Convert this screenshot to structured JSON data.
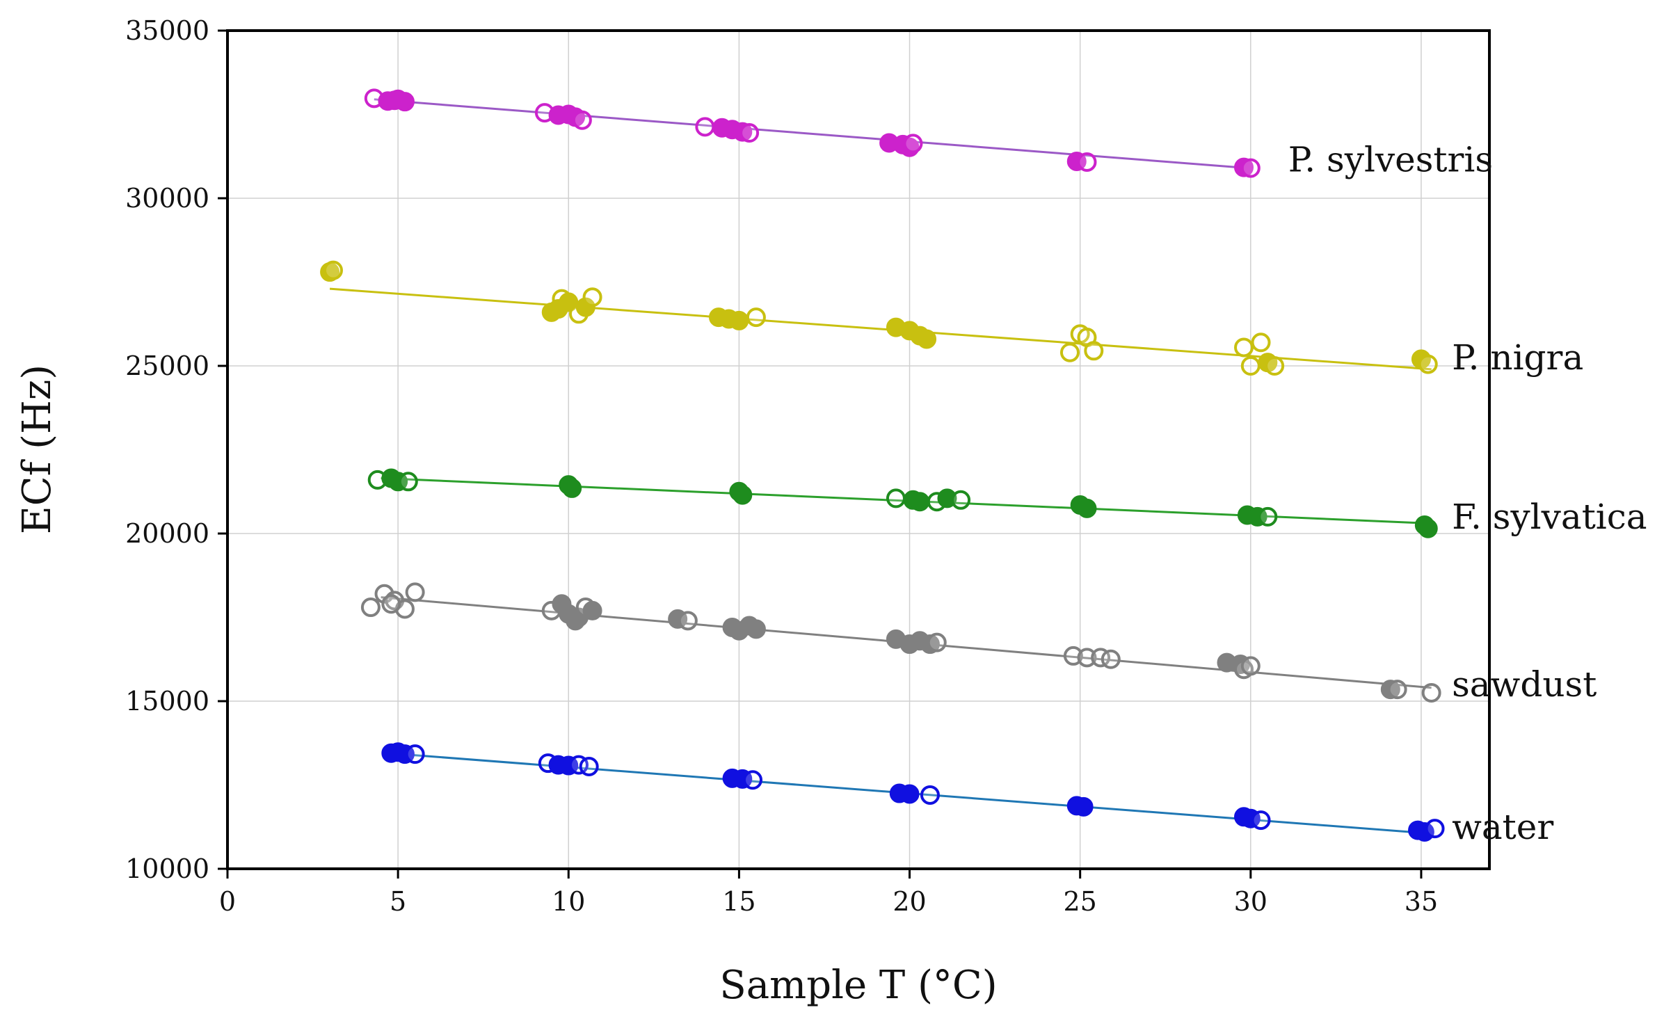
{
  "chart_data": {
    "type": "scatter",
    "xlabel": "Sample T (°C)",
    "ylabel": "ECf (Hz)",
    "xlim": [
      0,
      37
    ],
    "ylim": [
      10000,
      35000
    ],
    "xticks": [
      0,
      5,
      10,
      15,
      20,
      25,
      30,
      35
    ],
    "yticks": [
      10000,
      15000,
      20000,
      25000,
      30000,
      35000
    ],
    "grid": true,
    "series": [
      {
        "name": "P. sylvestris",
        "color": "#cc22cc",
        "fit_color": "#9b59c6",
        "fit": {
          "x": [
            4.3,
            29.9
          ],
          "y": [
            32950,
            30900
          ]
        },
        "label_at": {
          "x": 31.1,
          "y": 31150
        },
        "points": [
          [
            4.3,
            32980,
            "o"
          ],
          [
            4.7,
            32900,
            "f"
          ],
          [
            5.0,
            32950,
            "f"
          ],
          [
            5.2,
            32880,
            "f"
          ],
          [
            4.9,
            32920,
            "f"
          ],
          [
            9.3,
            32550,
            "o"
          ],
          [
            9.7,
            32480,
            "f"
          ],
          [
            10.0,
            32500,
            "f"
          ],
          [
            10.2,
            32420,
            "f"
          ],
          [
            10.4,
            32330,
            "o"
          ],
          [
            14.0,
            32130,
            "o"
          ],
          [
            14.5,
            32100,
            "f"
          ],
          [
            14.8,
            32050,
            "f"
          ],
          [
            15.1,
            31980,
            "f"
          ],
          [
            15.3,
            31950,
            "o"
          ],
          [
            19.4,
            31650,
            "f"
          ],
          [
            19.8,
            31600,
            "f"
          ],
          [
            20.0,
            31520,
            "f"
          ],
          [
            20.1,
            31630,
            "o"
          ],
          [
            24.9,
            31100,
            "f"
          ],
          [
            25.2,
            31080,
            "o"
          ],
          [
            29.8,
            30920,
            "f"
          ],
          [
            30.0,
            30900,
            "o"
          ]
        ]
      },
      {
        "name": "P. nigra",
        "color": "#c8c010",
        "fit_color": "#c8c010",
        "fit": {
          "x": [
            3.0,
            35.3
          ],
          "y": [
            27300,
            24900
          ]
        },
        "label_at": {
          "x": 35.9,
          "y": 25250
        },
        "points": [
          [
            3.0,
            27800,
            "f"
          ],
          [
            3.1,
            27850,
            "o"
          ],
          [
            9.5,
            26600,
            "f"
          ],
          [
            9.8,
            27000,
            "o"
          ],
          [
            10.0,
            26900,
            "f"
          ],
          [
            10.3,
            26550,
            "o"
          ],
          [
            10.5,
            26750,
            "f"
          ],
          [
            10.7,
            27050,
            "o"
          ],
          [
            9.7,
            26700,
            "f"
          ],
          [
            14.4,
            26450,
            "f"
          ],
          [
            14.7,
            26400,
            "f"
          ],
          [
            15.0,
            26350,
            "f"
          ],
          [
            15.5,
            26450,
            "o"
          ],
          [
            19.6,
            26150,
            "f"
          ],
          [
            20.0,
            26050,
            "f"
          ],
          [
            20.3,
            25900,
            "f"
          ],
          [
            20.5,
            25800,
            "f"
          ],
          [
            24.7,
            25400,
            "o"
          ],
          [
            25.0,
            25950,
            "o"
          ],
          [
            25.2,
            25850,
            "o"
          ],
          [
            25.4,
            25450,
            "o"
          ],
          [
            29.8,
            25550,
            "o"
          ],
          [
            30.0,
            25000,
            "o"
          ],
          [
            30.3,
            25700,
            "o"
          ],
          [
            30.5,
            25100,
            "f"
          ],
          [
            30.7,
            25000,
            "o"
          ],
          [
            35.0,
            25200,
            "f"
          ],
          [
            35.2,
            25050,
            "o"
          ]
        ]
      },
      {
        "name": "F. sylvatica",
        "color": "#1e8c1e",
        "fit_color": "#2ca02c",
        "fit": {
          "x": [
            4.5,
            35.3
          ],
          "y": [
            21650,
            20300
          ]
        },
        "label_at": {
          "x": 35.9,
          "y": 20500
        },
        "points": [
          [
            4.4,
            21600,
            "o"
          ],
          [
            4.8,
            21650,
            "f"
          ],
          [
            5.0,
            21550,
            "f"
          ],
          [
            5.3,
            21550,
            "o"
          ],
          [
            10.0,
            21450,
            "f"
          ],
          [
            10.1,
            21350,
            "f"
          ],
          [
            15.0,
            21250,
            "f"
          ],
          [
            15.1,
            21150,
            "f"
          ],
          [
            19.6,
            21050,
            "o"
          ],
          [
            20.1,
            21000,
            "f"
          ],
          [
            20.3,
            20950,
            "f"
          ],
          [
            20.8,
            20950,
            "o"
          ],
          [
            21.1,
            21050,
            "f"
          ],
          [
            21.5,
            21000,
            "o"
          ],
          [
            25.0,
            20850,
            "f"
          ],
          [
            25.2,
            20750,
            "f"
          ],
          [
            29.9,
            20550,
            "f"
          ],
          [
            30.2,
            20500,
            "f"
          ],
          [
            30.5,
            20500,
            "o"
          ],
          [
            35.1,
            20250,
            "f"
          ],
          [
            35.2,
            20150,
            "f"
          ]
        ]
      },
      {
        "name": "sawdust",
        "color": "#808080",
        "fit_color": "#808080",
        "fit": {
          "x": [
            4.5,
            35.3
          ],
          "y": [
            18100,
            15400
          ]
        },
        "label_at": {
          "x": 35.9,
          "y": 15500
        },
        "points": [
          [
            4.2,
            17800,
            "o"
          ],
          [
            4.6,
            18200,
            "o"
          ],
          [
            4.9,
            18000,
            "o"
          ],
          [
            5.2,
            17750,
            "o"
          ],
          [
            5.5,
            18250,
            "o"
          ],
          [
            4.8,
            17900,
            "o"
          ],
          [
            9.5,
            17700,
            "o"
          ],
          [
            9.8,
            17900,
            "f"
          ],
          [
            10.0,
            17600,
            "f"
          ],
          [
            10.3,
            17500,
            "f"
          ],
          [
            10.5,
            17800,
            "o"
          ],
          [
            10.2,
            17400,
            "f"
          ],
          [
            10.7,
            17700,
            "f"
          ],
          [
            13.2,
            17450,
            "f"
          ],
          [
            13.5,
            17400,
            "o"
          ],
          [
            14.8,
            17200,
            "f"
          ],
          [
            15.0,
            17100,
            "f"
          ],
          [
            15.3,
            17250,
            "f"
          ],
          [
            15.5,
            17150,
            "f"
          ],
          [
            19.6,
            16850,
            "f"
          ],
          [
            20.0,
            16700,
            "f"
          ],
          [
            20.3,
            16800,
            "f"
          ],
          [
            20.6,
            16700,
            "f"
          ],
          [
            20.8,
            16750,
            "o"
          ],
          [
            24.8,
            16350,
            "o"
          ],
          [
            25.2,
            16300,
            "o"
          ],
          [
            25.6,
            16300,
            "o"
          ],
          [
            25.9,
            16250,
            "o"
          ],
          [
            29.3,
            16150,
            "f"
          ],
          [
            29.7,
            16100,
            "f"
          ],
          [
            29.8,
            15950,
            "o"
          ],
          [
            30.0,
            16050,
            "o"
          ],
          [
            34.1,
            15350,
            "f"
          ],
          [
            34.3,
            15350,
            "o"
          ],
          [
            35.3,
            15250,
            "o"
          ]
        ]
      },
      {
        "name": "water",
        "color": "#1010e0",
        "fit_color": "#1f77b4",
        "fit": {
          "x": [
            4.7,
            35.3
          ],
          "y": [
            13450,
            11050
          ]
        },
        "label_at": {
          "x": 35.9,
          "y": 11250
        },
        "points": [
          [
            4.8,
            13450,
            "f"
          ],
          [
            5.0,
            13480,
            "f"
          ],
          [
            5.2,
            13420,
            "f"
          ],
          [
            5.5,
            13420,
            "o"
          ],
          [
            9.4,
            13150,
            "o"
          ],
          [
            9.7,
            13100,
            "f"
          ],
          [
            10.0,
            13080,
            "f"
          ],
          [
            10.3,
            13100,
            "o"
          ],
          [
            10.6,
            13050,
            "o"
          ],
          [
            14.8,
            12700,
            "f"
          ],
          [
            15.1,
            12680,
            "f"
          ],
          [
            15.4,
            12650,
            "o"
          ],
          [
            19.7,
            12250,
            "f"
          ],
          [
            20.0,
            12230,
            "f"
          ],
          [
            20.6,
            12200,
            "o"
          ],
          [
            24.9,
            11880,
            "f"
          ],
          [
            25.1,
            11850,
            "f"
          ],
          [
            29.8,
            11550,
            "f"
          ],
          [
            30.0,
            11500,
            "f"
          ],
          [
            30.3,
            11450,
            "o"
          ],
          [
            34.9,
            11150,
            "f"
          ],
          [
            35.1,
            11100,
            "f"
          ],
          [
            35.4,
            11200,
            "o"
          ]
        ]
      }
    ]
  }
}
